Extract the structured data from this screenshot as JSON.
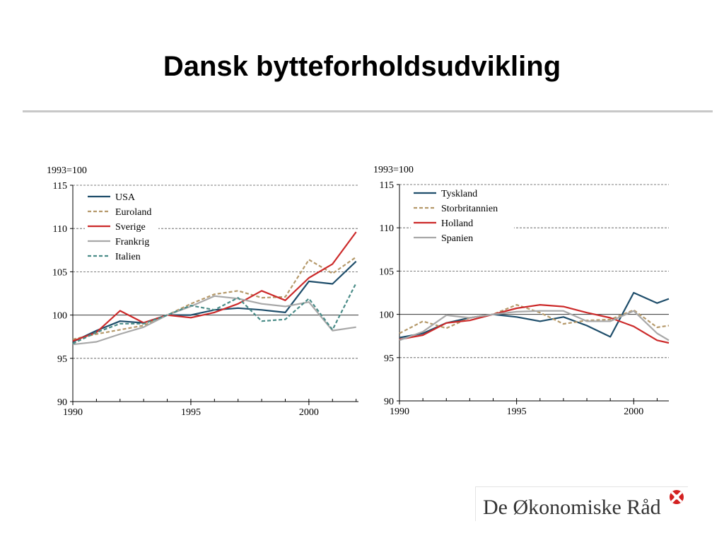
{
  "page": {
    "title": "Dansk bytteforholdsudvikling",
    "logo_text": "De Økonomiske Råd",
    "logo_mark_icon": "red-star-icon"
  },
  "chart_data": [
    {
      "type": "line",
      "ylabel": "1993=100",
      "ylim": [
        90,
        115
      ],
      "yticks": [
        90,
        95,
        100,
        105,
        110,
        115
      ],
      "xlim": [
        1990,
        2002.1
      ],
      "xticks": [
        1990,
        1995,
        2000
      ],
      "grid": true,
      "legend": "top-left",
      "series": [
        {
          "name": "USA",
          "color": "#1f4e6b",
          "dash": false,
          "x": [
            1990,
            1991,
            1992,
            1993,
            1994,
            1995,
            1996,
            1997,
            1998,
            1999,
            2000,
            2001,
            2002
          ],
          "values": [
            96.9,
            98.2,
            99.3,
            99.1,
            100.0,
            100.0,
            100.6,
            100.8,
            100.6,
            100.3,
            103.9,
            103.6,
            106.2
          ]
        },
        {
          "name": "Euroland",
          "color": "#b5996a",
          "dash": true,
          "x": [
            1990,
            1991,
            1992,
            1993,
            1994,
            1995,
            1996,
            1997,
            1998,
            1999,
            2000,
            2001,
            2002
          ],
          "values": [
            97.2,
            97.8,
            98.3,
            98.8,
            100.0,
            101.3,
            102.4,
            102.8,
            102.0,
            102.1,
            106.4,
            104.8,
            106.7
          ]
        },
        {
          "name": "Sverige",
          "color": "#cc2a2a",
          "dash": false,
          "x": [
            1990,
            1991,
            1992,
            1993,
            1994,
            1995,
            1996,
            1997,
            1998,
            1999,
            2000,
            2001,
            2002
          ],
          "values": [
            97.0,
            98.0,
            100.5,
            99.1,
            100.0,
            99.7,
            100.3,
            101.3,
            102.8,
            101.7,
            104.3,
            105.9,
            109.6
          ]
        },
        {
          "name": "Frankrig",
          "color": "#a8a8a8",
          "dash": false,
          "x": [
            1990,
            1991,
            1992,
            1993,
            1994,
            1995,
            1996,
            1997,
            1998,
            1999,
            2000,
            2001,
            2002
          ],
          "values": [
            96.6,
            96.9,
            97.8,
            98.6,
            100.0,
            101.0,
            102.2,
            101.9,
            101.3,
            101.0,
            101.5,
            98.2,
            98.6
          ]
        },
        {
          "name": "Italien",
          "color": "#4a8c88",
          "dash": true,
          "x": [
            1990,
            1991,
            1992,
            1993,
            1994,
            1995,
            1996,
            1997,
            1998,
            1999,
            2000,
            2001,
            2002
          ],
          "values": [
            96.7,
            98.0,
            99.0,
            99.0,
            100.0,
            101.1,
            100.6,
            102.0,
            99.3,
            99.5,
            101.9,
            98.3,
            103.7
          ]
        }
      ]
    },
    {
      "type": "line",
      "ylabel": "1993=100",
      "ylim": [
        90,
        115
      ],
      "yticks": [
        90,
        95,
        100,
        105,
        110,
        115
      ],
      "xlim": [
        1990,
        2001.5
      ],
      "xticks": [
        1990,
        1995,
        2000
      ],
      "grid": true,
      "legend": "top-left",
      "series": [
        {
          "name": "Tyskland",
          "color": "#1f4e6b",
          "dash": false,
          "x": [
            1990,
            1991,
            1992,
            1993,
            1994,
            1995,
            1996,
            1997,
            1998,
            1999,
            2000,
            2001,
            2001.5
          ],
          "values": [
            97.3,
            97.8,
            99.0,
            99.6,
            100.0,
            99.7,
            99.2,
            99.7,
            98.7,
            97.4,
            102.5,
            101.3,
            101.8
          ]
        },
        {
          "name": "Storbritannien",
          "color": "#b5996a",
          "dash": true,
          "x": [
            1990,
            1991,
            1992,
            1993,
            1994,
            1995,
            1996,
            1997,
            1998,
            1999,
            2000,
            2001,
            2001.5
          ],
          "values": [
            97.8,
            99.2,
            98.4,
            99.6,
            100.0,
            101.1,
            100.2,
            98.9,
            99.3,
            99.4,
            100.5,
            98.5,
            98.7
          ]
        },
        {
          "name": "Holland",
          "color": "#cc2a2a",
          "dash": false,
          "x": [
            1990,
            1991,
            1992,
            1993,
            1994,
            1995,
            1996,
            1997,
            1998,
            1999,
            2000,
            2001,
            2001.5
          ],
          "values": [
            97.1,
            97.6,
            99.0,
            99.3,
            100.0,
            100.7,
            101.1,
            100.9,
            100.2,
            99.6,
            98.6,
            97.0,
            96.7
          ]
        },
        {
          "name": "Spanien",
          "color": "#a8a8a8",
          "dash": false,
          "x": [
            1990,
            1991,
            1992,
            1993,
            1994,
            1995,
            1996,
            1997,
            1998,
            1999,
            2000,
            2001,
            2001.5
          ],
          "values": [
            97.0,
            98.0,
            99.9,
            99.6,
            100.0,
            100.3,
            100.4,
            100.4,
            99.2,
            99.2,
            100.4,
            97.8,
            97.0
          ]
        }
      ]
    }
  ]
}
